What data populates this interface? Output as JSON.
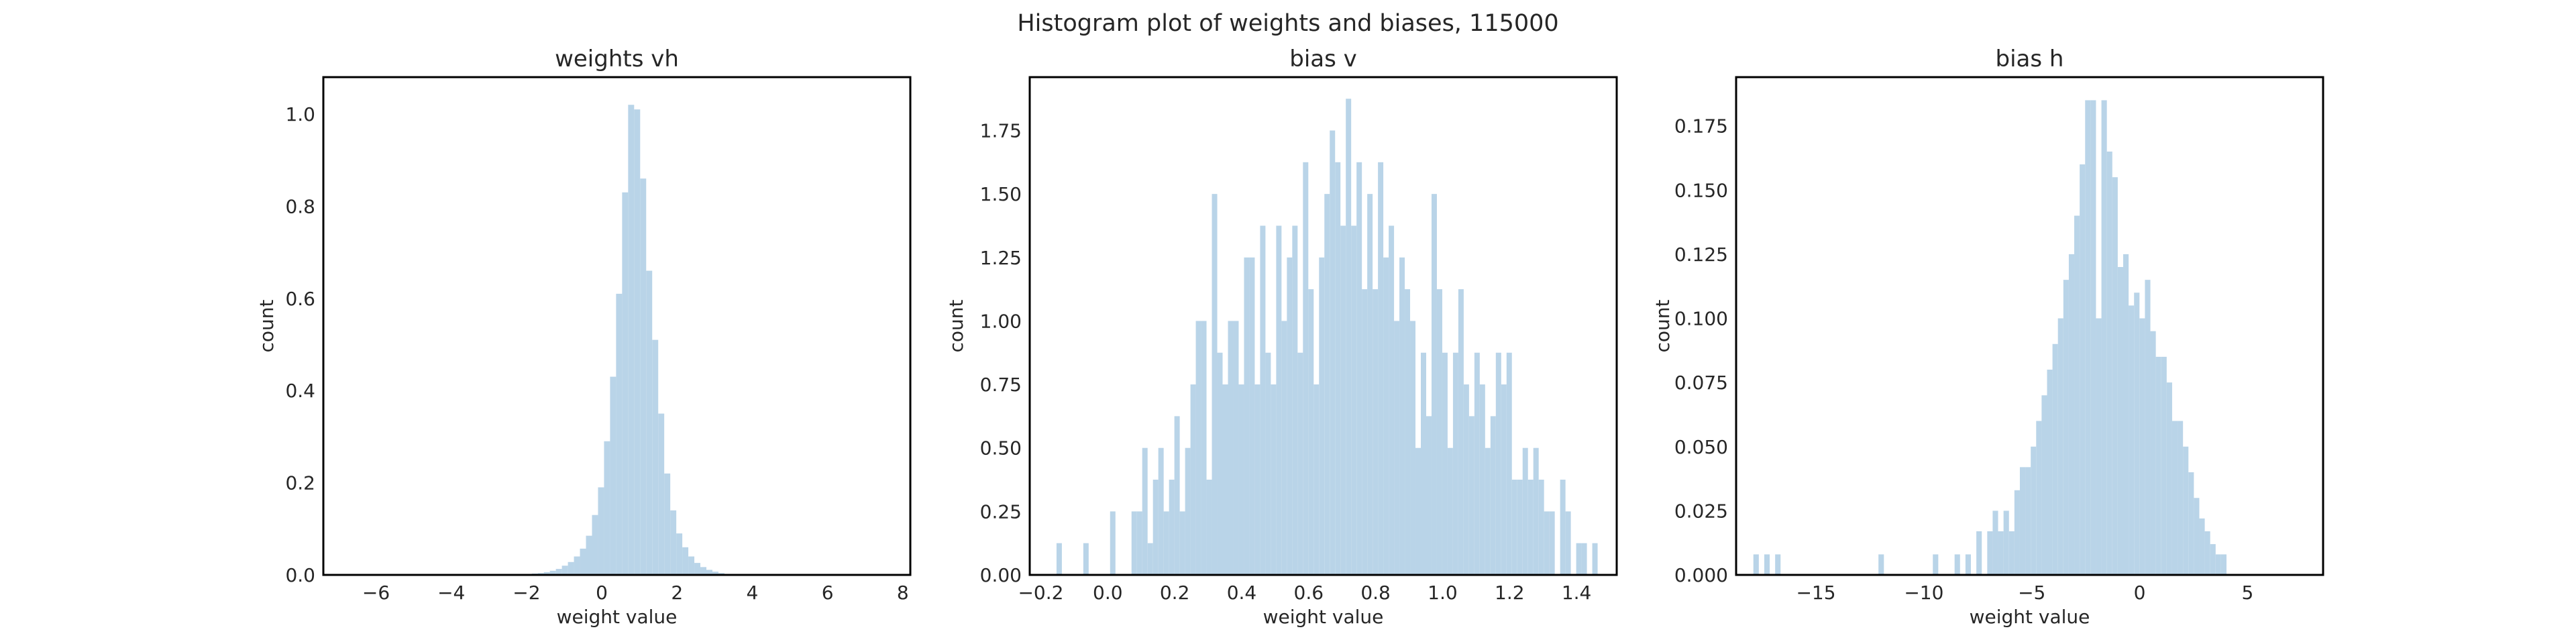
{
  "figure_title": "Histogram plot of weights and biases, 115000",
  "colors": {
    "bar": "#b9d4e8",
    "frame": "#000000",
    "text": "#262626"
  },
  "chart_data": [
    {
      "type": "bar",
      "title": "weights vh",
      "xlabel": "weight value",
      "ylabel": "count",
      "xlim": [
        -7.4,
        8.2
      ],
      "ylim": [
        0,
        1.08
      ],
      "xticks": [
        -6,
        -4,
        -2,
        0,
        2,
        4,
        6,
        8
      ],
      "xticklabels": [
        "−6",
        "−4",
        "−2",
        "0",
        "2",
        "4",
        "6",
        "8"
      ],
      "yticks": [
        0.0,
        0.2,
        0.4,
        0.6,
        0.8,
        1.0
      ],
      "yticklabels": [
        "0.0",
        "0.2",
        "0.4",
        "0.6",
        "0.8",
        "1.0"
      ],
      "bin_start": -7.3,
      "bin_width": 0.16,
      "values": [
        0,
        0,
        0,
        0,
        0,
        0,
        0,
        0,
        0,
        0,
        0,
        0,
        0,
        0,
        0,
        0,
        0,
        0,
        0,
        0,
        0,
        0,
        0,
        0,
        0,
        0,
        0,
        0,
        0,
        0,
        0,
        0,
        0,
        0,
        0.003,
        0.004,
        0.006,
        0.009,
        0.013,
        0.02,
        0.028,
        0.04,
        0.057,
        0.085,
        0.13,
        0.19,
        0.29,
        0.43,
        0.61,
        0.83,
        1.02,
        1.01,
        0.86,
        0.66,
        0.51,
        0.35,
        0.22,
        0.14,
        0.09,
        0.06,
        0.04,
        0.026,
        0.017,
        0.011,
        0.007,
        0.004,
        0.002,
        0,
        0,
        0,
        0,
        0,
        0,
        0,
        0,
        0,
        0,
        0,
        0,
        0,
        0,
        0,
        0,
        0,
        0,
        0,
        0,
        0,
        0,
        0,
        0,
        0,
        0,
        0,
        0,
        0,
        0,
        0,
        0,
        0
      ]
    },
    {
      "type": "bar",
      "title": "bias v",
      "xlabel": "weight value",
      "ylabel": "count",
      "xlim": [
        -0.233,
        1.52
      ],
      "ylim": [
        0,
        1.96
      ],
      "xticks": [
        -0.2,
        0.0,
        0.2,
        0.4,
        0.6,
        0.8,
        1.0,
        1.2,
        1.4
      ],
      "xticklabels": [
        "−0.2",
        "0.0",
        "0.2",
        "0.4",
        "0.6",
        "0.8",
        "1.0",
        "1.2",
        "1.4"
      ],
      "yticks": [
        0.0,
        0.25,
        0.5,
        0.75,
        1.0,
        1.25,
        1.5,
        1.75
      ],
      "yticklabels": [
        "0.00",
        "0.25",
        "0.50",
        "0.75",
        "1.00",
        "1.25",
        "1.50",
        "1.75"
      ],
      "bin_start": -0.153,
      "bin_width": 0.016,
      "values": [
        0.125,
        0,
        0,
        0,
        0,
        0.125,
        0,
        0,
        0,
        0,
        0.25,
        0,
        0,
        0,
        0.25,
        0.25,
        0.5,
        0.125,
        0.375,
        0.5,
        0.25,
        0.375,
        0.625,
        0.25,
        0.5,
        0.75,
        1.0,
        1.0,
        0.375,
        1.5,
        0.875,
        0.75,
        1.0,
        1.0,
        0.75,
        1.25,
        1.25,
        0.75,
        1.375,
        0.875,
        0.75,
        1.375,
        1.0,
        1.25,
        1.375,
        0.875,
        1.625,
        1.125,
        0.75,
        1.25,
        1.5,
        1.75,
        1.625,
        1.375,
        1.875,
        1.375,
        1.625,
        1.125,
        1.5,
        1.125,
        1.625,
        1.25,
        1.375,
        1.0,
        1.25,
        1.125,
        1.0,
        0.5,
        0.875,
        0.625,
        1.5,
        1.125,
        0.875,
        0.5,
        0.875,
        1.125,
        0.75,
        0.625,
        0.875,
        0.75,
        0.5,
        0.625,
        0.875,
        0.75,
        0.875,
        0.375,
        0.375,
        0.5,
        0.375,
        0.5,
        0.375,
        0.25,
        0.25,
        0,
        0.375,
        0.25,
        0,
        0.125,
        0.125,
        0,
        0.125
      ]
    },
    {
      "type": "bar",
      "title": "bias h",
      "xlabel": "weight value",
      "ylabel": "count",
      "xlim": [
        -18.7,
        8.5
      ],
      "ylim": [
        0,
        0.194
      ],
      "xticks": [
        -15,
        -10,
        -5,
        0,
        5
      ],
      "xticklabels": [
        "−15",
        "−10",
        "−5",
        "0",
        "5"
      ],
      "yticks": [
        0.0,
        0.025,
        0.05,
        0.075,
        0.1,
        0.125,
        0.15,
        0.175
      ],
      "yticklabels": [
        "0.000",
        "0.025",
        "0.050",
        "0.075",
        "0.100",
        "0.125",
        "0.150",
        "0.175"
      ],
      "bin_start": -17.9,
      "bin_width": 0.252,
      "values": [
        0.008,
        0,
        0.008,
        0,
        0.008,
        0,
        0,
        0,
        0,
        0,
        0,
        0,
        0,
        0,
        0,
        0,
        0,
        0,
        0,
        0,
        0,
        0,
        0,
        0.008,
        0,
        0,
        0,
        0,
        0,
        0,
        0,
        0,
        0,
        0.008,
        0,
        0,
        0,
        0.008,
        0,
        0.008,
        0,
        0.017,
        0,
        0.017,
        0.025,
        0.017,
        0.025,
        0.017,
        0.033,
        0.042,
        0.042,
        0.05,
        0.06,
        0.07,
        0.08,
        0.09,
        0.1,
        0.115,
        0.125,
        0.14,
        0.16,
        0.185,
        0.185,
        0.1,
        0.185,
        0.165,
        0.155,
        0.12,
        0.125,
        0.105,
        0.11,
        0.1,
        0.115,
        0.095,
        0.085,
        0.085,
        0.075,
        0.06,
        0.06,
        0.05,
        0.04,
        0.03,
        0.022,
        0.017,
        0.012,
        0.008,
        0.008
      ]
    }
  ]
}
